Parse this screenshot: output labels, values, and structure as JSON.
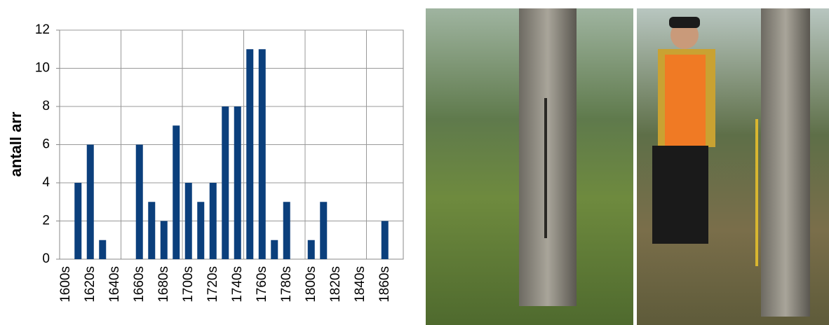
{
  "chart_data": {
    "type": "bar",
    "y_label": "antall arr",
    "categories": [
      "1600s",
      null,
      "1620s",
      null,
      "1640s",
      null,
      "1660s",
      null,
      "1680s",
      null,
      "1700s",
      null,
      "1720s",
      null,
      "1740s",
      null,
      "1760s",
      null,
      "1780s",
      null,
      "1800s",
      null,
      "1820s",
      null,
      "1840s",
      null,
      "1860s",
      null
    ],
    "values": [
      0,
      4,
      6,
      1,
      0,
      0,
      6,
      3,
      2,
      7,
      4,
      3,
      4,
      8,
      8,
      11,
      11,
      1,
      3,
      0,
      1,
      3,
      0,
      0,
      0,
      0,
      2,
      0
    ],
    "color": "#0b3f7c",
    "ylim": [
      0,
      12
    ],
    "yticks": [
      0,
      2,
      4,
      6,
      8,
      10,
      12
    ],
    "grid": true
  }
}
